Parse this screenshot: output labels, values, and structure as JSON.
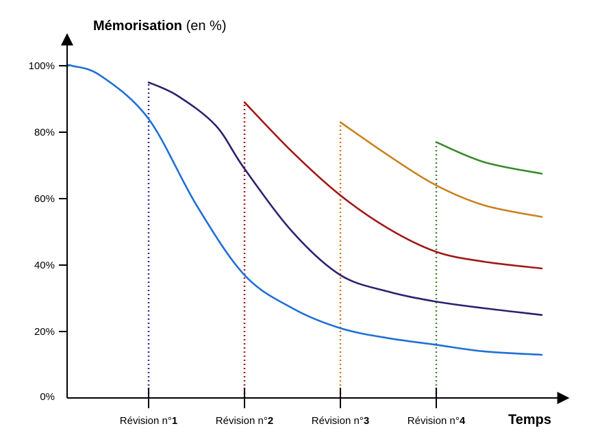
{
  "chart_data": {
    "type": "line",
    "ylabel": {
      "bold": "Mémorisation",
      "rest": " (en %)"
    },
    "xlabel": "Temps",
    "ylim": [
      0,
      100
    ],
    "xlim": [
      0,
      5
    ],
    "y_ticks": [
      {
        "value": 0,
        "label": "0%"
      },
      {
        "value": 20,
        "label": "20%"
      },
      {
        "value": 40,
        "label": "40%"
      },
      {
        "value": 60,
        "label": "60%"
      },
      {
        "value": 80,
        "label": "80%"
      },
      {
        "value": 100,
        "label": "100%"
      }
    ],
    "revisions": [
      {
        "x": 1,
        "prefix": "Révision n°",
        "number": "1",
        "color": "#2f2fa0"
      },
      {
        "x": 2,
        "prefix": "Révision n°",
        "number": "2",
        "color": "#a01818"
      },
      {
        "x": 3,
        "prefix": "Révision n°",
        "number": "3",
        "color": "#d07a1a"
      },
      {
        "x": 4,
        "prefix": "Révision n°",
        "number": "4",
        "color": "#3a8a2a"
      }
    ],
    "series": [
      {
        "color": "#1f6fd6",
        "points": [
          [
            0,
            100
          ],
          [
            0.2,
            100
          ],
          [
            0.5,
            97
          ],
          [
            1,
            84
          ],
          [
            1.5,
            58
          ],
          [
            2,
            37
          ],
          [
            2.5,
            27
          ],
          [
            3,
            21
          ],
          [
            3.5,
            18
          ],
          [
            4,
            16
          ],
          [
            4.5,
            14
          ],
          [
            5,
            13
          ]
        ]
      },
      {
        "color": "#2e1f6e",
        "points": [
          [
            1,
            95
          ],
          [
            1.3,
            91
          ],
          [
            1.7,
            82
          ],
          [
            2,
            69
          ],
          [
            2.5,
            50
          ],
          [
            3,
            37
          ],
          [
            3.5,
            32
          ],
          [
            4,
            29
          ],
          [
            4.5,
            27
          ],
          [
            5,
            25
          ]
        ]
      },
      {
        "color": "#a01818",
        "points": [
          [
            2,
            89
          ],
          [
            2.5,
            74
          ],
          [
            3,
            61
          ],
          [
            3.5,
            51
          ],
          [
            4,
            44
          ],
          [
            4.5,
            41
          ],
          [
            5,
            39
          ]
        ]
      },
      {
        "color": "#c8821e",
        "points": [
          [
            3,
            83
          ],
          [
            3.5,
            73
          ],
          [
            4,
            64
          ],
          [
            4.5,
            58
          ],
          [
            5,
            54.5
          ]
        ]
      },
      {
        "color": "#3a8a2a",
        "points": [
          [
            4,
            77
          ],
          [
            4.5,
            71
          ],
          [
            5,
            67.5
          ]
        ]
      }
    ]
  }
}
